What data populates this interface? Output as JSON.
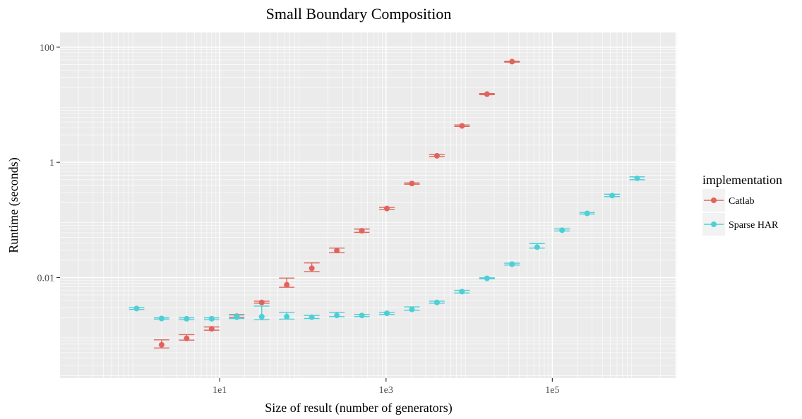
{
  "chart_data": {
    "type": "scatter",
    "title": "Small Boundary Composition",
    "xlabel": "Size of result (number of generators)",
    "ylabel": "Runtime (seconds)",
    "x_scale": "log",
    "y_scale": "log",
    "xlim": [
      0.12,
      3100000
    ],
    "ylim": [
      0.00018,
      180
    ],
    "x_ticks": [
      {
        "value": 10,
        "label": "1e1"
      },
      {
        "value": 1000,
        "label": "1e3"
      },
      {
        "value": 100000,
        "label": "1e5"
      }
    ],
    "y_ticks": [
      {
        "value": 0.01,
        "label": "0.01"
      },
      {
        "value": 1,
        "label": "1"
      },
      {
        "value": 100,
        "label": "100"
      }
    ],
    "grid": true,
    "legend": {
      "title": "implementation",
      "placement": "right",
      "entries": [
        "Catlab",
        "Sparse HAR"
      ]
    },
    "colors": {
      "Catlab": "#e0645c",
      "Sparse HAR": "#4dcfd6",
      "panel_background": "#ebebeb",
      "grid": "#ffffff"
    },
    "series": [
      {
        "name": "Catlab",
        "points": [
          {
            "x": 2,
            "y": 0.00068,
            "ymin": 0.0006,
            "ymax": 0.00083
          },
          {
            "x": 4,
            "y": 0.00088,
            "ymin": 0.00082,
            "ymax": 0.00102
          },
          {
            "x": 8,
            "y": 0.00129,
            "ymin": 0.00122,
            "ymax": 0.00139
          },
          {
            "x": 16,
            "y": 0.00214,
            "ymin": 0.00205,
            "ymax": 0.00225
          },
          {
            "x": 32,
            "y": 0.0037,
            "ymin": 0.0036,
            "ymax": 0.0039
          },
          {
            "x": 64,
            "y": 0.0075,
            "ymin": 0.0068,
            "ymax": 0.0098
          },
          {
            "x": 128,
            "y": 0.0145,
            "ymin": 0.0127,
            "ymax": 0.018
          },
          {
            "x": 256,
            "y": 0.0295,
            "ymin": 0.027,
            "ymax": 0.0325
          },
          {
            "x": 512,
            "y": 0.065,
            "ymin": 0.061,
            "ymax": 0.0695
          },
          {
            "x": 1024,
            "y": 0.158,
            "ymin": 0.153,
            "ymax": 0.165
          },
          {
            "x": 2048,
            "y": 0.43,
            "ymin": 0.418,
            "ymax": 0.44
          },
          {
            "x": 4096,
            "y": 1.3,
            "ymin": 1.26,
            "ymax": 1.36
          },
          {
            "x": 8192,
            "y": 4.3,
            "ymin": 4.2,
            "ymax": 4.45
          },
          {
            "x": 16384,
            "y": 15.3,
            "ymin": 15.0,
            "ymax": 15.6
          },
          {
            "x": 32768,
            "y": 56,
            "ymin": 55,
            "ymax": 57
          }
        ]
      },
      {
        "name": "Sparse HAR",
        "points": [
          {
            "x": 1,
            "y": 0.0029,
            "ymin": 0.0028,
            "ymax": 0.003
          },
          {
            "x": 2,
            "y": 0.00195,
            "ymin": 0.0019,
            "ymax": 0.002
          },
          {
            "x": 4,
            "y": 0.00193,
            "ymin": 0.00185,
            "ymax": 0.002
          },
          {
            "x": 8,
            "y": 0.00193,
            "ymin": 0.00185,
            "ymax": 0.002
          },
          {
            "x": 16,
            "y": 0.00205,
            "ymin": 0.00195,
            "ymax": 0.0023
          },
          {
            "x": 32,
            "y": 0.0021,
            "ymin": 0.00185,
            "ymax": 0.0032
          },
          {
            "x": 64,
            "y": 0.0021,
            "ymin": 0.0019,
            "ymax": 0.0025
          },
          {
            "x": 128,
            "y": 0.00205,
            "ymin": 0.00195,
            "ymax": 0.0022
          },
          {
            "x": 256,
            "y": 0.0022,
            "ymin": 0.0021,
            "ymax": 0.0025
          },
          {
            "x": 512,
            "y": 0.0022,
            "ymin": 0.0021,
            "ymax": 0.0023
          },
          {
            "x": 1024,
            "y": 0.0024,
            "ymin": 0.0023,
            "ymax": 0.0025
          },
          {
            "x": 2048,
            "y": 0.0028,
            "ymin": 0.0027,
            "ymax": 0.0031
          },
          {
            "x": 4096,
            "y": 0.0037,
            "ymin": 0.0036,
            "ymax": 0.0039
          },
          {
            "x": 8192,
            "y": 0.0057,
            "ymin": 0.0054,
            "ymax": 0.006
          },
          {
            "x": 16384,
            "y": 0.0097,
            "ymin": 0.0095,
            "ymax": 0.0099
          },
          {
            "x": 32768,
            "y": 0.0171,
            "ymin": 0.0165,
            "ymax": 0.0178
          },
          {
            "x": 65536,
            "y": 0.0338,
            "ymin": 0.0325,
            "ymax": 0.039
          },
          {
            "x": 131072,
            "y": 0.0665,
            "ymin": 0.0645,
            "ymax": 0.07
          },
          {
            "x": 262144,
            "y": 0.13,
            "ymin": 0.127,
            "ymax": 0.135
          },
          {
            "x": 524288,
            "y": 0.265,
            "ymin": 0.255,
            "ymax": 0.28
          },
          {
            "x": 1048576,
            "y": 0.53,
            "ymin": 0.5,
            "ymax": 0.56
          }
        ]
      }
    ]
  }
}
